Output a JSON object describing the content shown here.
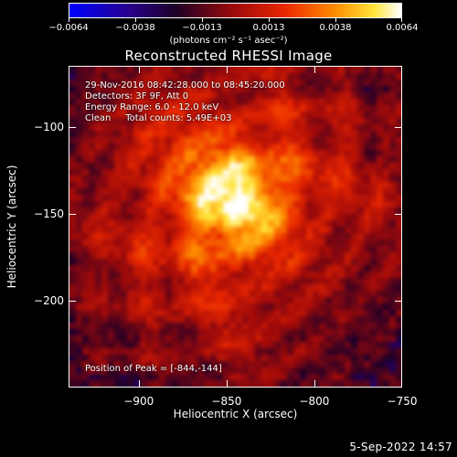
{
  "colorbar": {
    "labels": [
      "-0.0064",
      "-0.0038",
      "-0.0013",
      "0.0013",
      "0.0038",
      "0.0064"
    ],
    "units": "(photons cm⁻² s⁻¹ asec⁻²)"
  },
  "timestamp": "5-Sep-2022 14:57",
  "chart_data": {
    "type": "heatmap",
    "title": "Reconstructed RHESSI Image",
    "xlabel": "Heliocentric X (arcsec)",
    "ylabel": "Heliocentric Y (arcsec)",
    "xlim": [
      -940,
      -750
    ],
    "ylim": [
      -250,
      -65
    ],
    "x_ticks": [
      -900,
      -850,
      -800,
      -750
    ],
    "y_ticks": [
      -100,
      -150,
      -200
    ],
    "x_tick_labels": [
      "−900",
      "−850",
      "−800",
      "−750"
    ],
    "y_tick_labels": [
      "−100",
      "−150",
      "−200"
    ],
    "colorbar_range": [
      -0.0064,
      0.0064
    ],
    "colormap": "hot",
    "annotations": [
      "29-Nov-2016 08:42:28.000 to 08:45:20.000",
      "Detectors: 3F 9F, Att 0",
      "Energy Range: 6.0 - 12.0 keV",
      "Clean     Total counts: 5.49E+03"
    ],
    "peak_label": "Position of Peak = [-844,-144]",
    "peak_position": [
      -844,
      -144
    ]
  }
}
